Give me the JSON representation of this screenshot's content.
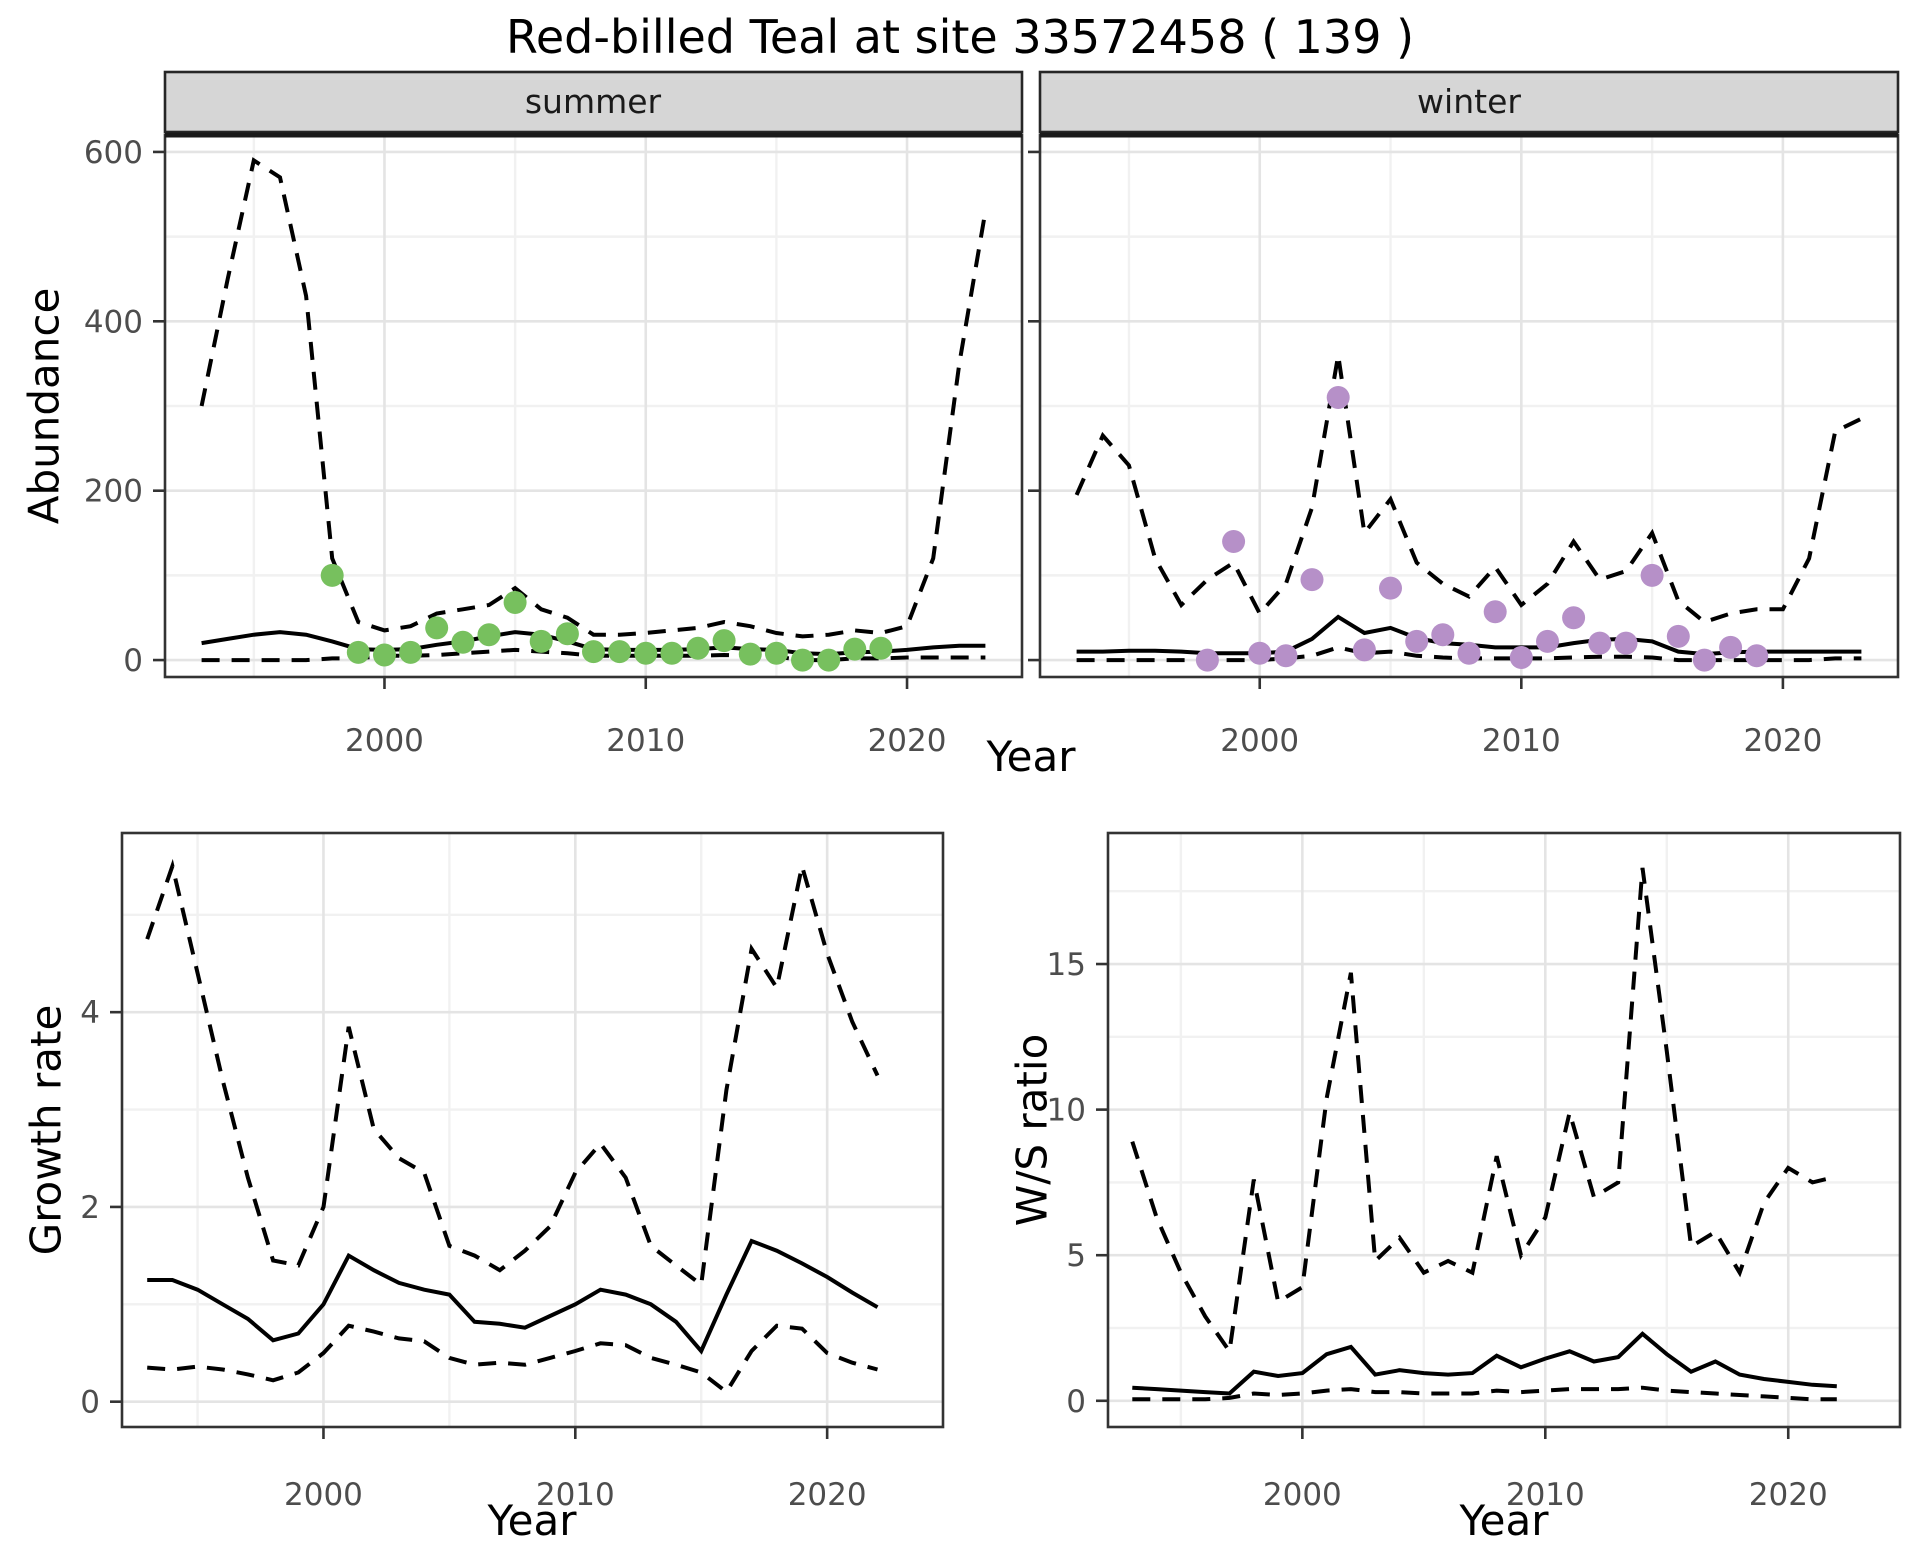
{
  "title": "Red-billed Teal at site 33572458 ( 139 )",
  "labels": {
    "abundance": "Abundance",
    "year": "Year",
    "growth_rate": "Growth rate",
    "ws_ratio": "W/S ratio"
  },
  "facets": {
    "summer": "summer",
    "winter": "winter"
  },
  "colors": {
    "summer_points": "#77c05e",
    "winter_points": "#b690c8",
    "line": "#000000",
    "grid_major": "#e4e4e4",
    "grid_minor": "#f1f1f1",
    "strip_fill": "#d6d6d6",
    "strip_border": "#262626",
    "panel_border": "#333333",
    "tick_color": "#333333",
    "tick_label": "#4d4d4d"
  },
  "chart_data": [
    {
      "id": "abundance-summer",
      "type": "line",
      "facet_label": "summer",
      "xlabel": "Year",
      "ylabel": "Abundance",
      "xlim": [
        1991.6,
        2024.4
      ],
      "ylim": [
        -20,
        620
      ],
      "x_ticks": [
        2000,
        2010,
        2020
      ],
      "x_minor_ticks": [
        1995,
        2005,
        2015
      ],
      "y_ticks": [
        0,
        200,
        400,
        600
      ],
      "y_minor_ticks": [
        100,
        300,
        500
      ],
      "x": [
        1993,
        1994,
        1995,
        1996,
        1997,
        1998,
        1999,
        2000,
        2001,
        2002,
        2003,
        2004,
        2005,
        2006,
        2007,
        2008,
        2009,
        2010,
        2011,
        2012,
        2013,
        2014,
        2015,
        2016,
        2017,
        2018,
        2019,
        2020,
        2021,
        2022,
        2023
      ],
      "series": [
        {
          "name": "upper_95ci",
          "style": "dashed",
          "y": [
            300,
            450,
            590,
            570,
            430,
            120,
            45,
            35,
            40,
            55,
            60,
            65,
            85,
            60,
            50,
            30,
            30,
            32,
            35,
            38,
            45,
            40,
            32,
            28,
            30,
            35,
            32,
            40,
            120,
            350,
            530
          ]
        },
        {
          "name": "lower_95ci",
          "style": "dashed",
          "y": [
            0,
            0,
            0,
            0,
            0,
            2,
            2,
            5,
            5,
            6,
            8,
            10,
            12,
            10,
            8,
            5,
            5,
            5,
            5,
            5,
            6,
            5,
            4,
            0,
            0,
            2,
            2,
            3,
            3,
            3,
            3
          ]
        },
        {
          "name": "median",
          "style": "solid",
          "y": [
            20,
            25,
            30,
            33,
            30,
            22,
            13,
            12,
            13,
            18,
            22,
            28,
            33,
            30,
            22,
            13,
            12,
            12,
            12,
            13,
            15,
            13,
            12,
            8,
            7,
            9,
            10,
            12,
            15,
            17,
            17
          ]
        }
      ],
      "points": {
        "name": "observed-count",
        "color_key": "summer_points",
        "x": [
          1998,
          1999,
          2000,
          2001,
          2002,
          2003,
          2004,
          2005,
          2006,
          2007,
          2008,
          2009,
          2010,
          2011,
          2012,
          2013,
          2014,
          2015,
          2016,
          2017,
          2018,
          2019
        ],
        "y": [
          100,
          9,
          6,
          9,
          38,
          21,
          30,
          68,
          22,
          31,
          10,
          10,
          8,
          8,
          14,
          23,
          7,
          8,
          0,
          0,
          13,
          14
        ]
      }
    },
    {
      "id": "abundance-winter",
      "type": "line",
      "facet_label": "winter",
      "xlabel": "Year",
      "ylabel": "",
      "xlim": [
        1991.6,
        2024.4
      ],
      "ylim": [
        -20,
        620
      ],
      "x_ticks": [
        2000,
        2010,
        2020
      ],
      "x_minor_ticks": [
        1995,
        2005,
        2015
      ],
      "y_ticks": [
        0,
        200,
        400,
        600
      ],
      "y_minor_ticks": [
        100,
        300,
        500
      ],
      "x": [
        1993,
        1994,
        1995,
        1996,
        1997,
        1998,
        1999,
        2000,
        2001,
        2002,
        2003,
        2004,
        2005,
        2006,
        2007,
        2008,
        2009,
        2010,
        2011,
        2012,
        2013,
        2014,
        2015,
        2016,
        2017,
        2018,
        2019,
        2020,
        2021,
        2022,
        2023
      ],
      "series": [
        {
          "name": "upper_95ci",
          "style": "dashed",
          "y": [
            195,
            265,
            230,
            120,
            65,
            95,
            115,
            55,
            90,
            180,
            360,
            150,
            190,
            115,
            90,
            75,
            110,
            65,
            90,
            140,
            95,
            105,
            150,
            70,
            45,
            55,
            60,
            60,
            120,
            270,
            285
          ]
        },
        {
          "name": "lower_95ci",
          "style": "dashed",
          "y": [
            0,
            0,
            0,
            0,
            0,
            0,
            0,
            0,
            2,
            5,
            15,
            8,
            10,
            5,
            3,
            2,
            2,
            2,
            2,
            3,
            4,
            4,
            3,
            0,
            0,
            0,
            0,
            0,
            0,
            2,
            2
          ]
        },
        {
          "name": "median",
          "style": "solid",
          "y": [
            10,
            10,
            11,
            11,
            10,
            8,
            8,
            8,
            10,
            25,
            51,
            32,
            38,
            26,
            20,
            18,
            15,
            15,
            15,
            20,
            24,
            25,
            22,
            10,
            7,
            9,
            10,
            10,
            10,
            10,
            10
          ]
        }
      ],
      "points": {
        "name": "observed-count",
        "color_key": "winter_points",
        "x": [
          1998,
          1999,
          2000,
          2001,
          2002,
          2003,
          2004,
          2005,
          2006,
          2007,
          2008,
          2009,
          2010,
          2011,
          2012,
          2013,
          2014,
          2015,
          2016,
          2017,
          2018,
          2019
        ],
        "y": [
          0,
          140,
          8,
          5,
          95,
          310,
          12,
          85,
          22,
          30,
          8,
          57,
          3,
          22,
          50,
          20,
          20,
          100,
          28,
          0,
          15,
          5
        ]
      }
    },
    {
      "id": "growth-rate",
      "type": "line",
      "facet_label": "",
      "xlabel": "Year",
      "ylabel": "Growth rate",
      "xlim": [
        1992,
        2024.6
      ],
      "ylim": [
        -0.26,
        5.84
      ],
      "x_ticks": [
        2000,
        2010,
        2020
      ],
      "x_minor_ticks": [
        1995,
        2005,
        2015
      ],
      "y_ticks": [
        0,
        2,
        4
      ],
      "y_minor_ticks": [
        1,
        3,
        5
      ],
      "x": [
        1993,
        1994,
        1995,
        1996,
        1997,
        1998,
        1999,
        2000,
        2001,
        2002,
        2003,
        2004,
        2005,
        2006,
        2007,
        2008,
        2009,
        2010,
        2011,
        2012,
        2013,
        2014,
        2015,
        2016,
        2017,
        2018,
        2019,
        2020,
        2021,
        2022
      ],
      "series": [
        {
          "name": "upper_95ci",
          "style": "dashed",
          "y": [
            4.75,
            5.5,
            4.4,
            3.3,
            2.3,
            1.45,
            1.4,
            2.0,
            3.85,
            2.8,
            2.5,
            2.35,
            1.6,
            1.5,
            1.35,
            1.55,
            1.8,
            2.35,
            2.65,
            2.3,
            1.6,
            1.4,
            1.2,
            3.2,
            4.65,
            4.25,
            5.5,
            4.6,
            3.9,
            3.35
          ]
        },
        {
          "name": "lower_95ci",
          "style": "dashed",
          "y": [
            0.35,
            0.33,
            0.36,
            0.33,
            0.28,
            0.22,
            0.3,
            0.5,
            0.78,
            0.72,
            0.65,
            0.62,
            0.45,
            0.38,
            0.4,
            0.38,
            0.45,
            0.52,
            0.6,
            0.58,
            0.45,
            0.38,
            0.3,
            0.1,
            0.52,
            0.78,
            0.75,
            0.5,
            0.4,
            0.33
          ]
        },
        {
          "name": "median",
          "style": "solid",
          "y": [
            1.25,
            1.25,
            1.15,
            1.0,
            0.85,
            0.63,
            0.7,
            1.0,
            1.5,
            1.35,
            1.22,
            1.15,
            1.1,
            0.82,
            0.8,
            0.76,
            0.88,
            1.0,
            1.15,
            1.1,
            1.0,
            0.82,
            0.52,
            1.1,
            1.65,
            1.55,
            1.42,
            1.28,
            1.12,
            0.97
          ]
        }
      ],
      "points": null
    },
    {
      "id": "ws-ratio",
      "type": "line",
      "facet_label": "",
      "xlabel": "Year",
      "ylabel": "W/S ratio",
      "xlim": [
        1992,
        2024.6
      ],
      "ylim": [
        -0.9,
        19.5
      ],
      "x_ticks": [
        2000,
        2010,
        2020
      ],
      "x_minor_ticks": [
        1995,
        2005,
        2015
      ],
      "y_ticks": [
        0,
        5,
        10,
        15
      ],
      "y_minor_ticks": [
        2.5,
        7.5,
        12.5,
        17.5
      ],
      "x": [
        1993,
        1994,
        1995,
        1996,
        1997,
        1998,
        1999,
        2000,
        2001,
        2002,
        2003,
        2004,
        2005,
        2006,
        2007,
        2008,
        2009,
        2010,
        2011,
        2012,
        2013,
        2014,
        2015,
        2016,
        2017,
        2018,
        2019,
        2020,
        2021,
        2022
      ],
      "series": [
        {
          "name": "upper_95ci",
          "style": "dashed",
          "y": [
            8.9,
            6.3,
            4.4,
            2.9,
            1.7,
            7.6,
            3.4,
            3.9,
            10.4,
            14.7,
            4.8,
            5.6,
            4.4,
            4.8,
            4.4,
            8.4,
            5.0,
            6.3,
            9.9,
            7.0,
            7.5,
            18.3,
            12.0,
            5.3,
            5.8,
            4.4,
            6.8,
            8.0,
            7.5,
            7.7
          ]
        },
        {
          "name": "lower_95ci",
          "style": "dashed",
          "y": [
            0.05,
            0.05,
            0.05,
            0.05,
            0.1,
            0.25,
            0.2,
            0.25,
            0.35,
            0.4,
            0.3,
            0.3,
            0.25,
            0.25,
            0.25,
            0.35,
            0.3,
            0.35,
            0.4,
            0.4,
            0.4,
            0.45,
            0.35,
            0.3,
            0.25,
            0.2,
            0.15,
            0.1,
            0.05,
            0.05
          ]
        },
        {
          "name": "median",
          "style": "solid",
          "y": [
            0.45,
            0.4,
            0.35,
            0.3,
            0.25,
            1.0,
            0.85,
            0.95,
            1.6,
            1.85,
            0.9,
            1.05,
            0.95,
            0.9,
            0.95,
            1.55,
            1.15,
            1.45,
            1.7,
            1.35,
            1.5,
            2.3,
            1.6,
            1.0,
            1.35,
            0.9,
            0.75,
            0.65,
            0.55,
            0.5
          ]
        }
      ],
      "points": null
    }
  ]
}
